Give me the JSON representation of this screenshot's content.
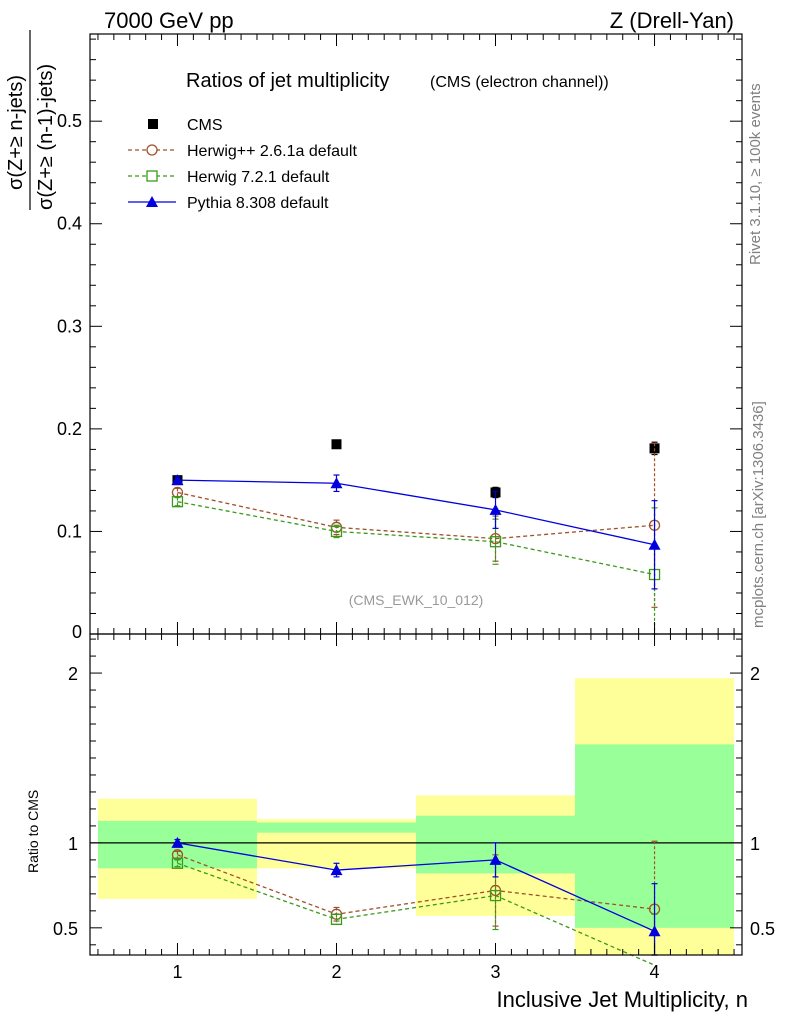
{
  "header": {
    "left": "7000 GeV pp",
    "right": "Z (Drell-Yan)"
  },
  "side": {
    "rivet": "Rivet 3.1.10, ≥ 100k events",
    "mcplots": "mcplots.cern.ch [arXiv:1306.3436]"
  },
  "chart_data": [
    {
      "type": "scatter",
      "title": "Ratios of jet multiplicity",
      "subtitle": "(CMS (electron channel))",
      "watermark": "(CMS_EWK_10_012)",
      "ylabel_num": "σ(Z+≥ n-jets)",
      "ylabel_den": "σ(Z+≥ (n-1)-jets)",
      "xlabel": "",
      "ylim": [
        0.0,
        0.585
      ],
      "yticks": [
        0.1,
        0.2,
        0.3,
        0.4,
        0.5
      ],
      "ytick_labels": [
        "0.1",
        "0.2",
        "0.3",
        "0.4",
        "0.5"
      ],
      "y0_label": "0",
      "x": [
        1,
        2,
        3,
        4
      ],
      "legend_position": "top-left",
      "series": [
        {
          "name": "CMS",
          "color": "#000000",
          "marker": "filled-square",
          "line": "none",
          "values": [
            0.15,
            0.185,
            0.138,
            0.181
          ],
          "err": [
            0.004,
            0.004,
            0.005,
            0.006
          ]
        },
        {
          "name": "Herwig++ 2.6.1a default",
          "color": "#a0522d",
          "marker": "open-circle",
          "line": "dashed",
          "values": [
            0.138,
            0.104,
            0.093,
            0.106
          ],
          "err": [
            0.004,
            0.007,
            0.022,
            0.08
          ]
        },
        {
          "name": "Herwig 7.2.1 default",
          "color": "#3a9a1a",
          "marker": "open-square",
          "line": "dashed",
          "values": [
            0.129,
            0.1,
            0.09,
            0.058
          ],
          "err": [
            0.004,
            0.006,
            0.022,
            0.065
          ]
        },
        {
          "name": "Pythia 8.308 default",
          "color": "#0000dd",
          "marker": "filled-triangle",
          "line": "solid",
          "values": [
            0.15,
            0.147,
            0.121,
            0.087
          ],
          "err": [
            0.003,
            0.008,
            0.018,
            0.043
          ]
        }
      ]
    },
    {
      "type": "scatter",
      "ylabel": "Ratio to CMS",
      "xlabel": "Inclusive Jet Multiplicity, n",
      "ylim": [
        0.34,
        2.23
      ],
      "yticks": [
        0.5,
        1,
        2
      ],
      "ytick_labels": [
        "0.5",
        "1",
        "2"
      ],
      "xlim": [
        0.45,
        4.55
      ],
      "xticks": [
        1,
        2,
        3,
        4
      ],
      "xtick_labels": [
        "1",
        "2",
        "3",
        "4"
      ],
      "x": [
        1,
        2,
        3,
        4
      ],
      "bands": {
        "bins": [
          [
            0.5,
            1.5
          ],
          [
            1.5,
            2.5
          ],
          [
            2.5,
            3.5
          ],
          [
            3.5,
            4.5
          ]
        ],
        "stat": [
          [
            0.85,
            1.13
          ],
          [
            1.06,
            1.12
          ],
          [
            0.82,
            1.16
          ],
          [
            0.5,
            1.58
          ]
        ],
        "total": [
          [
            0.67,
            1.26
          ],
          [
            0.85,
            1.14
          ],
          [
            0.57,
            1.28
          ],
          [
            0.34,
            1.97
          ]
        ],
        "stat_color": "#99ff99",
        "total_color": "#ffff99"
      },
      "series": [
        {
          "name": "Herwig++ 2.6.1a default",
          "color": "#a0522d",
          "marker": "open-circle",
          "line": "dashed",
          "values": [
            0.93,
            0.58,
            0.72,
            0.61
          ],
          "err": [
            0.02,
            0.04,
            0.21,
            0.4
          ]
        },
        {
          "name": "Herwig 7.2.1 default",
          "color": "#3a9a1a",
          "marker": "open-square",
          "line": "dashed",
          "values": [
            0.88,
            0.55,
            0.69,
            0.28
          ],
          "err": [
            0.02,
            0.03,
            0.2,
            0.3
          ]
        },
        {
          "name": "Pythia 8.308 default",
          "color": "#0000dd",
          "marker": "filled-triangle",
          "line": "solid",
          "values": [
            1.0,
            0.84,
            0.9,
            0.48
          ],
          "err": [
            0.02,
            0.04,
            0.1,
            0.28
          ]
        }
      ]
    }
  ]
}
